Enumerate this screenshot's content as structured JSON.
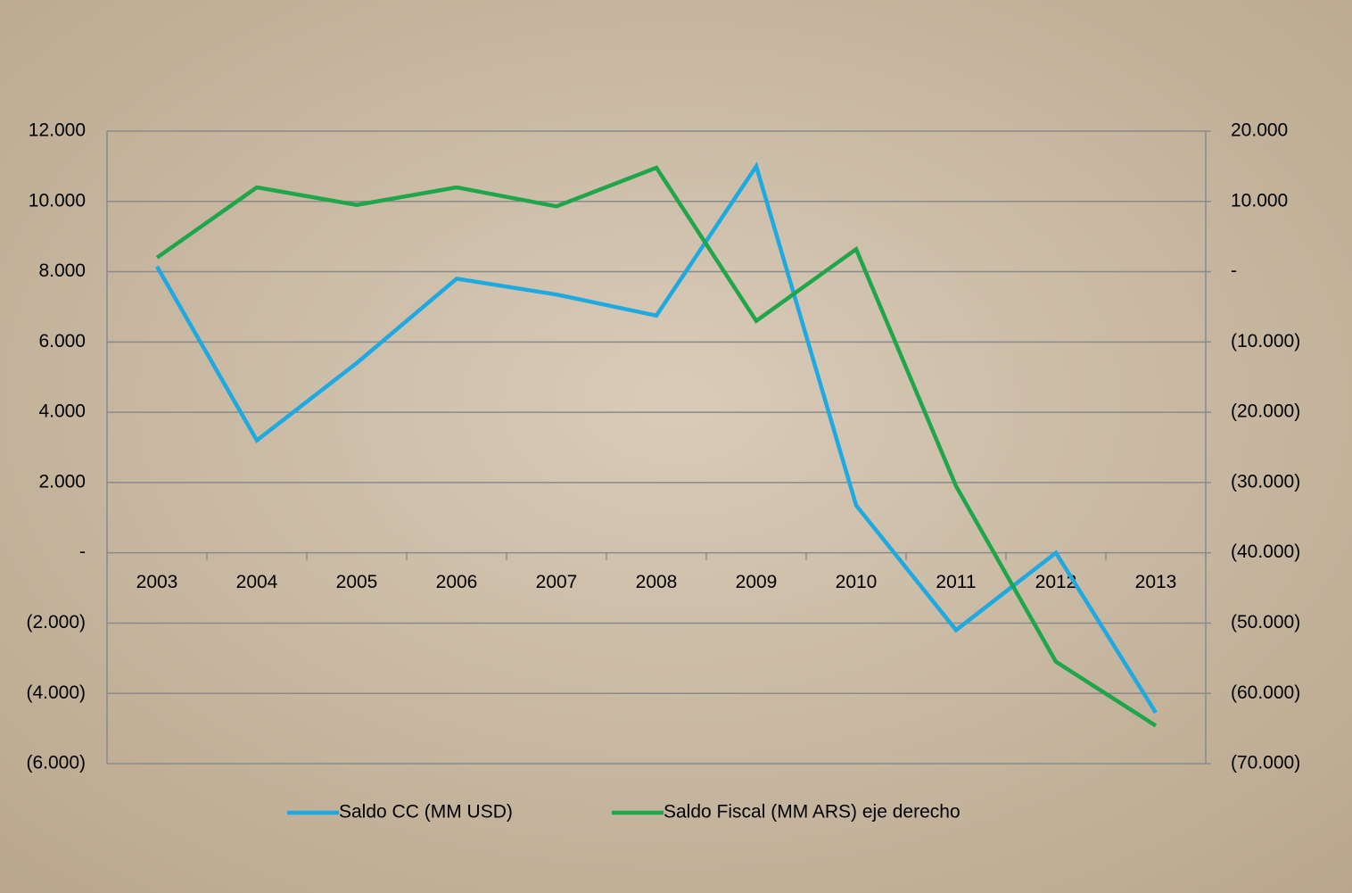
{
  "chart_data": {
    "type": "line",
    "categories": [
      "2003",
      "2004",
      "2005",
      "2006",
      "2007",
      "2008",
      "2009",
      "2010",
      "2011",
      "2012",
      "2013"
    ],
    "series": [
      {
        "name": "Saldo CC (MM USD)",
        "color": "#1fa9e1",
        "values": [
          8150,
          3200,
          5400,
          7800,
          7350,
          6750,
          11000,
          1350,
          -2200,
          0,
          -4550
        ]
      },
      {
        "name": "Saldo Fiscal (MM ARS) eje derecho",
        "color": "#1fa64a",
        "axis": "y2",
        "values": [
          2000,
          12000,
          9500,
          12000,
          9300,
          14800,
          -7000,
          3200,
          -30500,
          -55500,
          -64600
        ]
      }
    ],
    "ylim": [
      -6000,
      12000
    ],
    "yticks": [
      {
        "value": 12000,
        "label": "12.000"
      },
      {
        "value": 10000,
        "label": "10.000"
      },
      {
        "value": 8000,
        "label": "8.000"
      },
      {
        "value": 6000,
        "label": "6.000"
      },
      {
        "value": 4000,
        "label": "4.000"
      },
      {
        "value": 2000,
        "label": "2.000"
      },
      {
        "value": 0,
        "label": "-"
      },
      {
        "value": -2000,
        "label": "(2.000)"
      },
      {
        "value": -4000,
        "label": "(4.000)"
      },
      {
        "value": -6000,
        "label": "(6.000)"
      }
    ],
    "y2lim": [
      -70000,
      20000
    ],
    "y2ticks": [
      {
        "value": 20000,
        "label": "20.000"
      },
      {
        "value": 10000,
        "label": "10.000"
      },
      {
        "value": 0,
        "label": "-"
      },
      {
        "value": -10000,
        "label": "(10.000)"
      },
      {
        "value": -20000,
        "label": "(20.000)"
      },
      {
        "value": -30000,
        "label": "(30.000)"
      },
      {
        "value": -40000,
        "label": "(40.000)"
      },
      {
        "value": -50000,
        "label": "(50.000)"
      },
      {
        "value": -60000,
        "label": "(60.000)"
      },
      {
        "value": -70000,
        "label": "(70.000)"
      }
    ],
    "grid": true
  }
}
